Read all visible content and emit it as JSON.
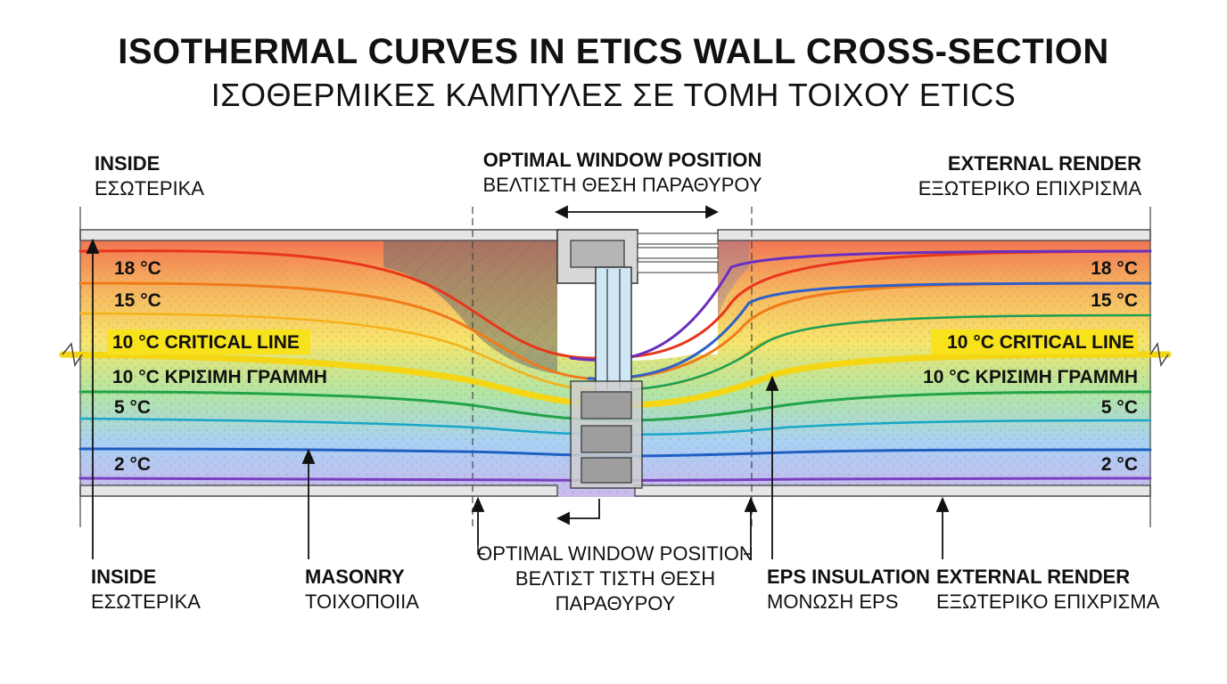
{
  "title": {
    "en": "ISOTHERMAL CURVES IN ETICS WALL CROSS-SECTION",
    "gr": "ΙΣΟΘΕΡΜΙΚΕΣ ΚΑΜΠΥΛΕΣ ΣΕ ΤΟΜΗ ΤΟΙΧΟΥ ETICS"
  },
  "top_labels": {
    "inside": {
      "en": "INSIDE",
      "gr": "ΕΣΩΤΕΡΙΚΑ"
    },
    "window": {
      "en": "OPTIMAL WINDOW POSITION",
      "gr": "ΒΕΛΤΙΣΤΗ ΘΕΣΗ ΠΑΡΑΘΥΡΟΥ"
    },
    "render": {
      "en": "EXTERNAL RENDER",
      "gr": "ΕΞΩΤΕΡΙΚΟ ΕΠΙΧΡΙΣΜΑ"
    }
  },
  "bottom_labels": {
    "inside": {
      "en": "INSIDE",
      "gr": "ΕΣΩΤΕΡΙΚΑ"
    },
    "masonry": {
      "en": "MASONRY",
      "gr": "ΤΟΙΧΟΠΟΙΙΑ"
    },
    "window": {
      "en": "OPTIMAL WINDOW POSITION",
      "gr1": "ΒΕΛΤΙΣΤ ΤΙΣΤΗ ΘΕΣΗ",
      "gr2": "ΠΑΡΑΘΥΡΟΥ"
    },
    "eps": {
      "en": "EPS INSULATION",
      "gr": "ΜΟΝΩΣΗ EPS"
    },
    "render": {
      "en": "EXTERNAL RENDER",
      "gr": "ΕΞΩΤΕΡΙΚΟ ΕΠΙΧΡΙΣΜΑ"
    }
  },
  "isotherms": [
    {
      "label": "18 °C",
      "color": "#e8361c"
    },
    {
      "label": "15 °C",
      "color": "#f07a1a"
    },
    {
      "label": "10 °C CRITICAL LINE",
      "label_gr": "10 °C ΚΡΙΣΙΜΗ ΓΡΑΜΜΗ",
      "color": "#f4d614",
      "critical": true
    },
    {
      "label": "5 °C",
      "color": "#22a34a"
    },
    {
      "label": "2 °C",
      "color": "#1f5fc4"
    }
  ],
  "extra_isotherms": [
    {
      "color": "#f4b21a"
    },
    {
      "color": "#18a7c8"
    },
    {
      "color": "#7a3fc0"
    }
  ],
  "colors": {
    "critical_highlight": "#f7e21c",
    "wall_border": "#555555",
    "render_band": "#e6e6e6"
  }
}
